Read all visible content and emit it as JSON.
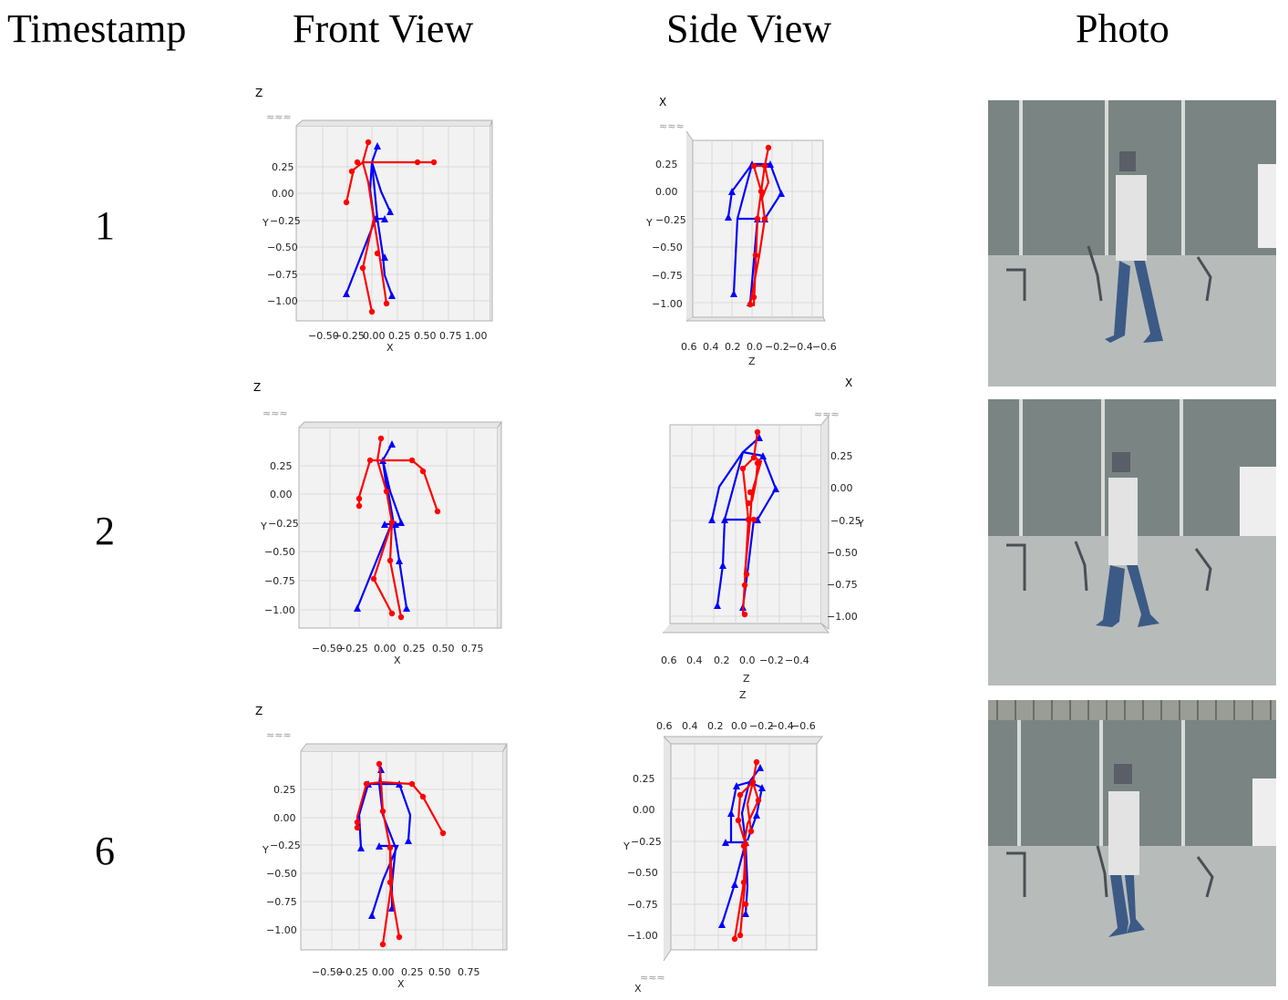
{
  "headers": {
    "timestamp": "Timestamp",
    "front": "Front View",
    "side": "Side View",
    "photo": "Photo"
  },
  "rows": [
    {
      "timestamp": "1"
    },
    {
      "timestamp": "2"
    },
    {
      "timestamp": "6"
    }
  ],
  "front_axis": {
    "x_label": "X",
    "y_label": "Y",
    "z_label": "Z",
    "x_ticks": [
      "−0.50",
      "−0.25",
      "0.00",
      "0.25",
      "0.50",
      "0.75",
      "1.00"
    ],
    "x_ticks_short": [
      "−0.50",
      "−0.25",
      "0.00",
      "0.25",
      "0.50",
      "0.75"
    ],
    "y_ticks": [
      "0.25",
      "0.00",
      "−0.25",
      "−0.50",
      "−0.75",
      "−1.00"
    ]
  },
  "side_axis": {
    "x_label": "X",
    "y_label": "Y",
    "z_label": "Z",
    "z_ticks": [
      "0.6",
      "0.4",
      "0.2",
      "0.0",
      "−0.2",
      "−0.4",
      "−0.6"
    ],
    "z_ticks_short": [
      "0.6",
      "0.4",
      "0.2",
      "0.0",
      "−0.2",
      "−0.4"
    ],
    "y_ticks": [
      "0.25",
      "0.00",
      "−0.25",
      "−0.50",
      "−0.75",
      "−1.00"
    ]
  },
  "colors": {
    "prediction": "#ff0000",
    "ground_truth": "#0000ff",
    "pane": "#f2f2f2",
    "grid": "#d9d9d9"
  }
}
